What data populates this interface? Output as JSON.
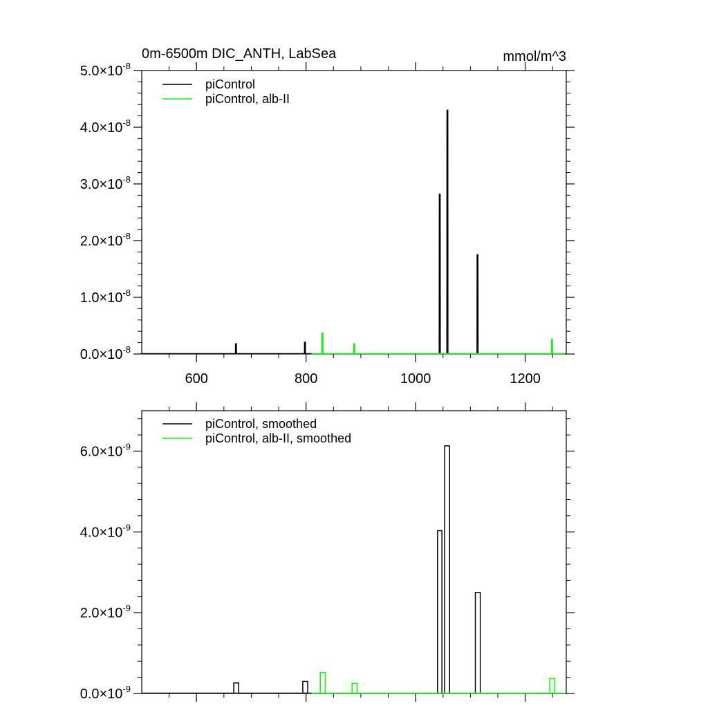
{
  "chart_data": [
    {
      "type": "line",
      "title": "0m-6500m DIC_ANTH, LabSea",
      "units": "mmol/m^3",
      "xlim": [
        500,
        1275
      ],
      "ylim": [
        0,
        5e-08
      ],
      "x_ticks": [
        600,
        800,
        1000,
        1200
      ],
      "x_tick_labels": [
        "600",
        "800",
        "1000",
        "1200"
      ],
      "y_ticks": [
        0,
        1e-08,
        2e-08,
        3e-08,
        4e-08,
        5e-08
      ],
      "y_tick_mantissas": [
        "0.0",
        "1.0",
        "2.0",
        "3.0",
        "4.0",
        "5.0"
      ],
      "y_tick_times": "×10",
      "y_tick_exponent": "-8",
      "legend": "top-left",
      "series": [
        {
          "name": "piControl",
          "color": "#000000",
          "baseline": [
            500,
            810
          ],
          "spikes": [
            {
              "x": 672,
              "width": 2,
              "y": 1.8e-09
            },
            {
              "x": 798,
              "width": 2,
              "y": 2.1e-09
            },
            {
              "x": 1044,
              "width": 2,
              "y": 2.82e-08
            },
            {
              "x": 1058,
              "width": 2,
              "y": 4.3e-08
            },
            {
              "x": 1113,
              "width": 2,
              "y": 1.75e-08
            }
          ]
        },
        {
          "name": "piControl, alb-II",
          "color": "#00ff00",
          "baseline": [
            810,
            1272
          ],
          "spikes": [
            {
              "x": 830,
              "width": 2,
              "y": 3.7e-09
            },
            {
              "x": 888,
              "width": 2,
              "y": 1.8e-09
            },
            {
              "x": 1249,
              "width": 2,
              "y": 2.6e-09
            }
          ]
        }
      ]
    },
    {
      "type": "line",
      "xlim": [
        500,
        1275
      ],
      "ylim": [
        0,
        7e-09
      ],
      "x_ticks": [
        600,
        800,
        1000,
        1200
      ],
      "y_ticks": [
        0,
        2e-09,
        4e-09,
        6e-09
      ],
      "y_tick_mantissas": [
        "0.0",
        "2.0",
        "4.0",
        "6.0"
      ],
      "y_tick_times": "×10",
      "y_tick_exponent": "-9",
      "legend": "top-left",
      "series": [
        {
          "name": "piControl, smoothed",
          "color": "#000000",
          "baseline": [
            500,
            810
          ],
          "pulses": [
            {
              "x0": 668,
              "x1": 677,
              "y": 2.6e-10
            },
            {
              "x0": 794,
              "x1": 803,
              "y": 3e-10
            },
            {
              "x0": 1040,
              "x1": 1048,
              "y": 4.03e-09
            },
            {
              "x0": 1053,
              "x1": 1062,
              "y": 6.13e-09
            },
            {
              "x0": 1109,
              "x1": 1118,
              "y": 2.5e-09
            }
          ]
        },
        {
          "name": "piControl, alb-II, smoothed",
          "color": "#00ff00",
          "baseline": [
            810,
            1272
          ],
          "pulses": [
            {
              "x0": 826,
              "x1": 835,
              "y": 5.2e-10
            },
            {
              "x0": 884,
              "x1": 893,
              "y": 2.5e-10
            },
            {
              "x0": 1245,
              "x1": 1254,
              "y": 3.7e-10
            }
          ]
        }
      ]
    }
  ]
}
